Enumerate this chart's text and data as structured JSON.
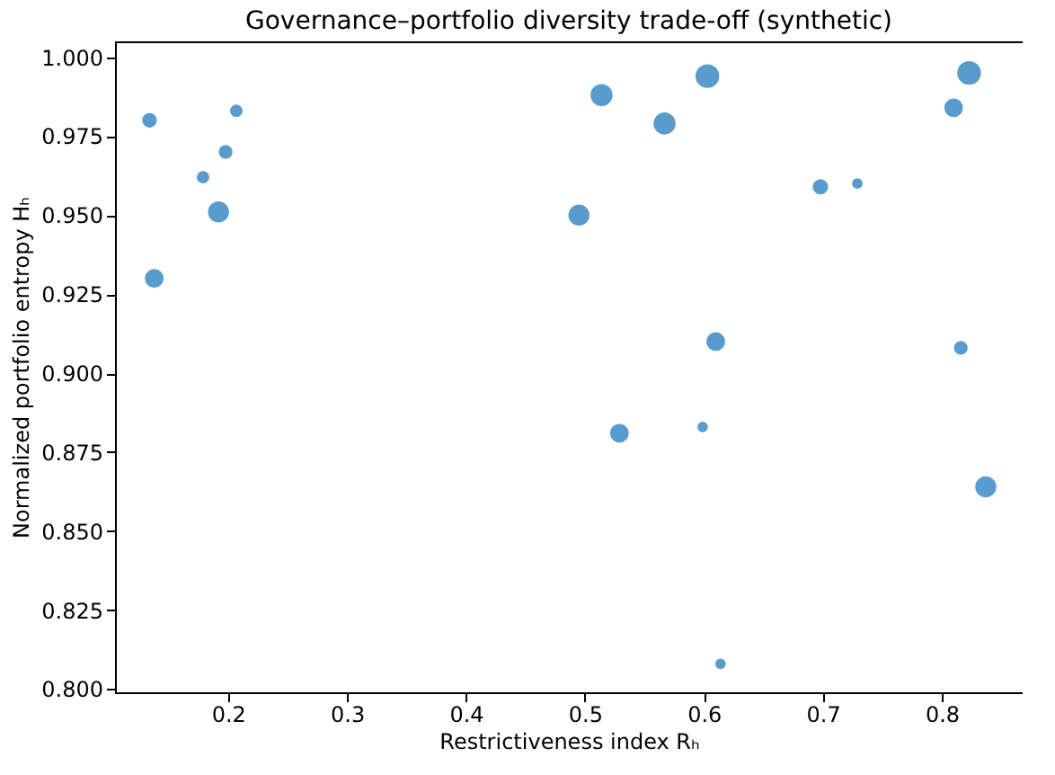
{
  "chart_data": {
    "type": "bubble",
    "title": "Governance–portfolio diversity trade-off (synthetic)",
    "xlabel": "Restrictiveness index Rₕ",
    "ylabel": "Normalized portfolio entropy Hₕ",
    "x": [
      0.134,
      0.138,
      0.179,
      0.198,
      0.207,
      0.192,
      0.495,
      0.514,
      0.567,
      0.603,
      0.698,
      0.729,
      0.81,
      0.823,
      0.61,
      0.529,
      0.599,
      0.816,
      0.837,
      0.614
    ],
    "series": [
      {
        "color": "#5a9bcd",
        "values": [
          0.98,
          0.93,
          0.962,
          0.97,
          0.983,
          0.951,
          0.95,
          0.988,
          0.979,
          0.994,
          0.959,
          0.96,
          0.984,
          0.995,
          0.91,
          0.881,
          0.883,
          0.908,
          0.864,
          0.808
        ],
        "sizes": [
          0.4,
          0.64,
          0.3,
          0.36,
          0.3,
          0.8,
          0.8,
          0.87,
          0.87,
          1,
          0.44,
          0.22,
          0.64,
          1,
          0.64,
          0.64,
          0.22,
          0.36,
          0.8,
          0.22
        ]
      }
    ],
    "xlim": [
      0.105,
      0.868
    ],
    "xticks": [
      0.2,
      0.3,
      0.4,
      0.5,
      0.6,
      0.7,
      0.8
    ],
    "ylim": [
      0.799,
      1.005
    ],
    "yticks": [
      {
        "value": 0.8,
        "label": "0.800"
      },
      {
        "value": 0.825,
        "label": "0.825"
      },
      {
        "value": 0.85,
        "label": "0.850"
      },
      {
        "value": 0.875,
        "label": "0.875"
      },
      {
        "value": 0.9,
        "label": "0.900"
      },
      {
        "value": 0.925,
        "label": "0.925"
      },
      {
        "value": 0.95,
        "label": "0.950"
      },
      {
        "value": 0.975,
        "label": "0.975"
      },
      {
        "value": 1.0,
        "label": "1.000"
      }
    ],
    "grid": false,
    "marker": "circle"
  }
}
